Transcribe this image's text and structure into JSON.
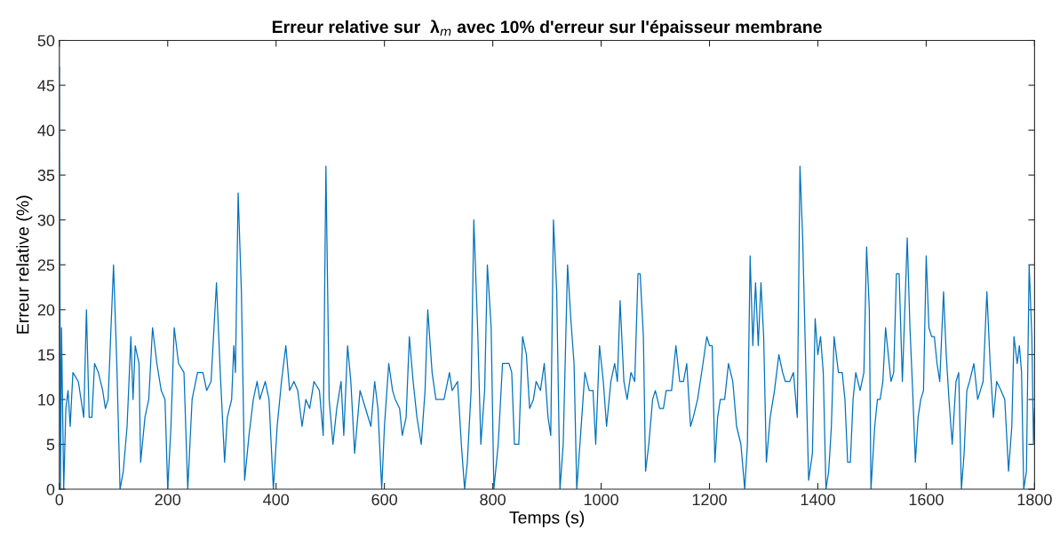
{
  "chart_data": {
    "type": "line",
    "title": "Erreur relative sur  λ$_{m}$ avec 10% d'erreur sur l'épaisseur membrane",
    "xlabel": "Temps (s)",
    "ylabel": "Erreur relative (%)",
    "xlim": [
      0,
      1800
    ],
    "xticks": [
      0,
      200,
      400,
      600,
      800,
      1000,
      1200,
      1400,
      1600,
      1800
    ],
    "ylim": [
      0,
      50
    ],
    "yticks": [
      0,
      5,
      10,
      15,
      20,
      25,
      30,
      35,
      40,
      45,
      50
    ],
    "grid": false,
    "legend": false,
    "marker": "none",
    "line_style": "solid",
    "series": [
      {
        "color": "#0072bd",
        "x": [
          0,
          2,
          4,
          8,
          12,
          16,
          20,
          25,
          35,
          45,
          50,
          55,
          60,
          65,
          72,
          80,
          85,
          90,
          100,
          106,
          112,
          118,
          125,
          132,
          136,
          140,
          147,
          150,
          158,
          165,
          172,
          180,
          188,
          195,
          200,
          206,
          212,
          220,
          230,
          237,
          245,
          255,
          265,
          272,
          280,
          290,
          297,
          305,
          310,
          318,
          322,
          325,
          330,
          336,
          342,
          350,
          358,
          365,
          370,
          380,
          387,
          395,
          402,
          410,
          418,
          425,
          433,
          440,
          448,
          455,
          462,
          470,
          480,
          487,
          492,
          498,
          505,
          512,
          520,
          525,
          532,
          538,
          545,
          555,
          565,
          575,
          582,
          588,
          595,
          600,
          608,
          615,
          620,
          628,
          633,
          640,
          646,
          653,
          660,
          668,
          675,
          680,
          688,
          695,
          700,
          710,
          720,
          725,
          735,
          742,
          748,
          753,
          760,
          765,
          772,
          778,
          785,
          790,
          797,
          802,
          810,
          818,
          825,
          830,
          835,
          840,
          848,
          855,
          862,
          868,
          875,
          880,
          888,
          895,
          902,
          907,
          912,
          918,
          924,
          930,
          938,
          944,
          950,
          955,
          962,
          970,
          978,
          985,
          990,
          997,
          1004,
          1010,
          1018,
          1025,
          1030,
          1035,
          1042,
          1048,
          1055,
          1062,
          1068,
          1072,
          1078,
          1082,
          1088,
          1095,
          1100,
          1108,
          1115,
          1120,
          1130,
          1138,
          1145,
          1152,
          1158,
          1165,
          1170,
          1178,
          1188,
          1195,
          1200,
          1205,
          1210,
          1215,
          1220,
          1228,
          1235,
          1243,
          1250,
          1258,
          1265,
          1270,
          1275,
          1280,
          1285,
          1290,
          1295,
          1300,
          1305,
          1312,
          1320,
          1328,
          1335,
          1340,
          1348,
          1355,
          1362,
          1367,
          1372,
          1378,
          1383,
          1390,
          1395,
          1400,
          1405,
          1410,
          1415,
          1420,
          1425,
          1430,
          1438,
          1445,
          1450,
          1455,
          1460,
          1465,
          1470,
          1478,
          1485,
          1490,
          1495,
          1498,
          1505,
          1510,
          1515,
          1520,
          1525,
          1530,
          1535,
          1540,
          1545,
          1550,
          1556,
          1560,
          1565,
          1570,
          1575,
          1580,
          1585,
          1590,
          1595,
          1600,
          1605,
          1610,
          1615,
          1620,
          1625,
          1632,
          1637,
          1642,
          1648,
          1655,
          1660,
          1665,
          1670,
          1675,
          1680,
          1688,
          1695,
          1700,
          1705,
          1712,
          1718,
          1724,
          1730,
          1738,
          1745,
          1752,
          1758,
          1762,
          1768,
          1772,
          1776,
          1780,
          1785,
          1790,
          1795,
          1798,
          1800
        ],
        "values": [
          47,
          0,
          18,
          0,
          9,
          11,
          7,
          13,
          12,
          8,
          20,
          8,
          8,
          14,
          13,
          11,
          9,
          10,
          25,
          14,
          0,
          2,
          7,
          17,
          10,
          16,
          14,
          3,
          8,
          10,
          18,
          14,
          11,
          10,
          0,
          7,
          18,
          14,
          13,
          0,
          10,
          13,
          13,
          11,
          12,
          23,
          13,
          3,
          8,
          10,
          16,
          13,
          33,
          22,
          1,
          6,
          10,
          12,
          10,
          12,
          10,
          0,
          7,
          12,
          16,
          11,
          12,
          11,
          7,
          10,
          9,
          12,
          11,
          6,
          36,
          10,
          5,
          9,
          12,
          6,
          16,
          12,
          4,
          11,
          9,
          7,
          12,
          9,
          0,
          7,
          14,
          11,
          10,
          9,
          6,
          8,
          17,
          12,
          8,
          5,
          11,
          20,
          13,
          10,
          10,
          10,
          13,
          11,
          12,
          5,
          0,
          3,
          11,
          30,
          18,
          5,
          11,
          25,
          18,
          0,
          5,
          14,
          14,
          14,
          13,
          5,
          5,
          17,
          15,
          9,
          10,
          12,
          11,
          14,
          8,
          6,
          30,
          22,
          0,
          5,
          25,
          19,
          14,
          0,
          6,
          13,
          11,
          11,
          5,
          16,
          12,
          7,
          12,
          14,
          12,
          21,
          12,
          10,
          13,
          12,
          24,
          24,
          17,
          2,
          5,
          10,
          11,
          9,
          9,
          11,
          11,
          16,
          12,
          12,
          14,
          7,
          8,
          10,
          14,
          17,
          16,
          16,
          3,
          8,
          10,
          10,
          14,
          12,
          7,
          5,
          0,
          5,
          26,
          16,
          23,
          16,
          23,
          17,
          3,
          8,
          11,
          15,
          13,
          12,
          12,
          13,
          8,
          36,
          28,
          13,
          1,
          4,
          19,
          15,
          17,
          13,
          0,
          2,
          7,
          17,
          13,
          13,
          10,
          3,
          3,
          10,
          13,
          11,
          13,
          27,
          20,
          0,
          7,
          10,
          10,
          12,
          18,
          15,
          12,
          13,
          24,
          24,
          12,
          19,
          28,
          18,
          11,
          3,
          8,
          10,
          11,
          26,
          18,
          17,
          17,
          14,
          12,
          22,
          15,
          10,
          5,
          12,
          13,
          0,
          4,
          11,
          12,
          14,
          10,
          11,
          12,
          22,
          14,
          8,
          12,
          11,
          10,
          2,
          7,
          17,
          14,
          16,
          13,
          0,
          2,
          25,
          17,
          5,
          9
        ]
      }
    ]
  }
}
